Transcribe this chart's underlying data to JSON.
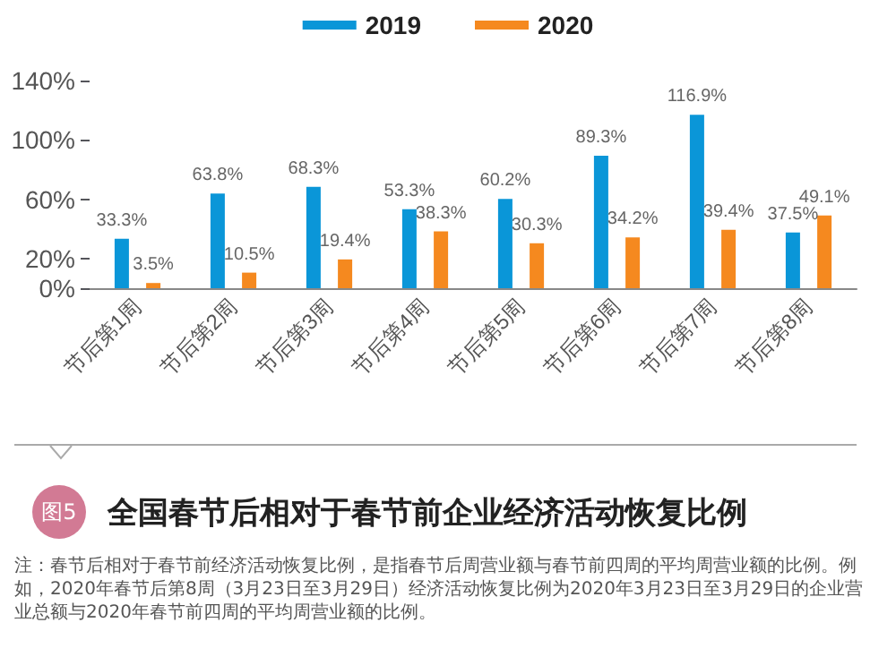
{
  "chart_data": {
    "type": "bar",
    "title": "全国春节后相对于春节前企业经济活动恢复比例",
    "categories": [
      "节后第1周",
      "节后第2周",
      "节后第3周",
      "节后第4周",
      "节后第5周",
      "节后第6周",
      "节后第7周",
      "节后第8周"
    ],
    "series": [
      {
        "name": "2019",
        "color": "#0a96d8",
        "values": [
          33.3,
          63.8,
          68.3,
          53.3,
          60.2,
          89.3,
          116.9,
          37.5
        ],
        "value_labels": [
          "33.3%",
          "63.8%",
          "68.3%",
          "53.3%",
          "60.2%",
          "89.3%",
          "116.9%",
          "37.5%"
        ]
      },
      {
        "name": "2020",
        "color": "#f5891f",
        "values": [
          3.5,
          10.5,
          19.4,
          38.3,
          30.3,
          34.2,
          39.4,
          49.1
        ],
        "value_labels": [
          "3.5%",
          "10.5%",
          "19.4%",
          "38.3%",
          "30.3%",
          "34.2%",
          "39.4%",
          "49.1%"
        ]
      }
    ],
    "ylim": [
      0,
      140
    ],
    "yticks": [
      {
        "value": 0,
        "label": "0%"
      },
      {
        "value": 20,
        "label": "20%"
      },
      {
        "value": 60,
        "label": "60%"
      },
      {
        "value": 100,
        "label": "100%"
      },
      {
        "value": 140,
        "label": "140%"
      }
    ],
    "legend": "top",
    "grid": false,
    "annotations": [
      "图5",
      "注：春节后相对于春节前经济活动恢复比例，是指春节后周营业额与春节前四周的平均周营业额的比例。例如，2020年春节后第8周（3月23日至3月29日）经济活动恢复比例为2020年3月23日至3月29日的企业营业总额与2020年春节前四周的平均周营业额的比例。"
    ]
  }
}
